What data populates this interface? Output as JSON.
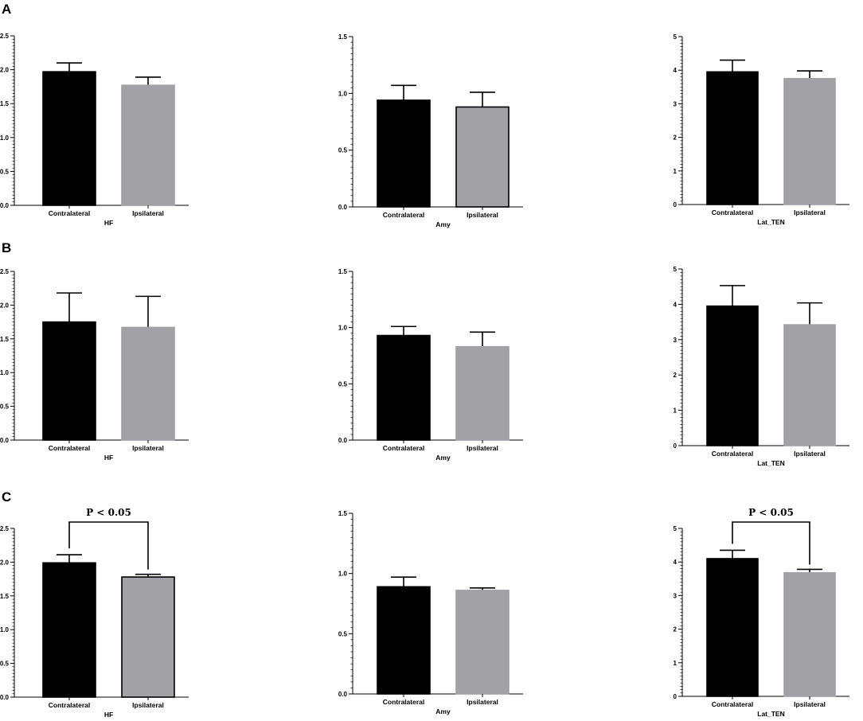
{
  "rows": [
    {
      "letter": "A"
    },
    {
      "letter": "B"
    },
    {
      "letter": "C"
    }
  ],
  "chart_data": [
    {
      "type": "bar",
      "row": 0,
      "col": 0,
      "categories": [
        "Contralateral",
        "Ipsilateral"
      ],
      "values": [
        1.97,
        1.77
      ],
      "errors": [
        0.13,
        0.12
      ],
      "xlabel": "HF",
      "ylabel": "",
      "ylim": [
        0,
        2.5
      ],
      "yticks": [
        "0.0",
        "0.5",
        "1.0",
        "1.5",
        "2.0",
        "2.5"
      ],
      "colors": [
        "#000000",
        "#a2a1a6"
      ],
      "bar_outline": [
        "#000000",
        "#a2a1a6"
      ],
      "significance": ""
    },
    {
      "type": "bar",
      "row": 0,
      "col": 1,
      "categories": [
        "Contralateral",
        "Ipsilateral"
      ],
      "values": [
        0.94,
        0.88
      ],
      "errors": [
        0.13,
        0.13
      ],
      "xlabel": "Amy",
      "ylabel": "",
      "ylim": [
        0,
        1.5
      ],
      "yticks": [
        "0.0",
        "0.5",
        "1.0",
        "1.5"
      ],
      "colors": [
        "#000000",
        "#a2a1a6"
      ],
      "bar_outline": [
        "#000000",
        "#000000"
      ],
      "significance": ""
    },
    {
      "type": "bar",
      "row": 0,
      "col": 2,
      "categories": [
        "Contralateral",
        "Ipsilateral"
      ],
      "values": [
        3.95,
        3.75
      ],
      "errors": [
        0.35,
        0.23
      ],
      "xlabel": "Lat_TEN",
      "ylabel": "",
      "ylim": [
        0,
        5
      ],
      "yticks": [
        "0",
        "1",
        "2",
        "3",
        "4",
        "5"
      ],
      "colors": [
        "#000000",
        "#a2a1a6"
      ],
      "bar_outline": [
        "#000000",
        "#a2a1a6"
      ],
      "significance": ""
    },
    {
      "type": "bar",
      "row": 1,
      "col": 0,
      "categories": [
        "Contralateral",
        "Ipsilateral"
      ],
      "values": [
        1.75,
        1.67
      ],
      "errors": [
        0.43,
        0.46
      ],
      "xlabel": "HF",
      "ylabel": "",
      "ylim": [
        0,
        2.5
      ],
      "yticks": [
        "0.0",
        "0.5",
        "1.0",
        "1.5",
        "2.0",
        "2.5"
      ],
      "colors": [
        "#000000",
        "#a2a1a6"
      ],
      "bar_outline": [
        "#000000",
        "#a2a1a6"
      ],
      "significance": ""
    },
    {
      "type": "bar",
      "row": 1,
      "col": 1,
      "categories": [
        "Contralateral",
        "Ipsilateral"
      ],
      "values": [
        0.93,
        0.83
      ],
      "errors": [
        0.08,
        0.13
      ],
      "xlabel": "Amy",
      "ylabel": "",
      "ylim": [
        0,
        1.5
      ],
      "yticks": [
        "0.0",
        "0.5",
        "1.0",
        "1.5"
      ],
      "colors": [
        "#000000",
        "#a2a1a6"
      ],
      "bar_outline": [
        "#000000",
        "#a2a1a6"
      ],
      "significance": ""
    },
    {
      "type": "bar",
      "row": 1,
      "col": 2,
      "categories": [
        "Contralateral",
        "Ipsilateral"
      ],
      "values": [
        3.95,
        3.42
      ],
      "errors": [
        0.58,
        0.62
      ],
      "xlabel": "Lat_TEN",
      "ylabel": "",
      "ylim": [
        0,
        5
      ],
      "yticks": [
        "0",
        "1",
        "2",
        "3",
        "4",
        "5"
      ],
      "colors": [
        "#000000",
        "#a2a1a6"
      ],
      "bar_outline": [
        "#000000",
        "#a2a1a6"
      ],
      "significance": ""
    },
    {
      "type": "bar",
      "row": 2,
      "col": 0,
      "categories": [
        "Contralateral",
        "Ipsilateral"
      ],
      "values": [
        1.99,
        1.78
      ],
      "errors": [
        0.12,
        0.04
      ],
      "xlabel": "HF",
      "ylabel": "",
      "ylim": [
        0,
        2.5
      ],
      "yticks": [
        "0.0",
        "0.5",
        "1.0",
        "1.5",
        "2.0",
        "2.5"
      ],
      "colors": [
        "#000000",
        "#a2a1a6"
      ],
      "bar_outline": [
        "#000000",
        "#000000"
      ],
      "significance": "P < 0.05"
    },
    {
      "type": "bar",
      "row": 2,
      "col": 1,
      "categories": [
        "Contralateral",
        "Ipsilateral"
      ],
      "values": [
        0.89,
        0.86
      ],
      "errors": [
        0.08,
        0.02
      ],
      "xlabel": "Amy",
      "ylabel": "",
      "ylim": [
        0,
        1.5
      ],
      "yticks": [
        "0.0",
        "0.5",
        "1.0",
        "1.5"
      ],
      "colors": [
        "#000000",
        "#a2a1a6"
      ],
      "bar_outline": [
        "#000000",
        "#a2a1a6"
      ],
      "significance": ""
    },
    {
      "type": "bar",
      "row": 2,
      "col": 2,
      "categories": [
        "Contralateral",
        "Ipsilateral"
      ],
      "values": [
        4.1,
        3.68
      ],
      "errors": [
        0.25,
        0.1
      ],
      "xlabel": "Lat_TEN",
      "ylabel": "",
      "ylim": [
        0,
        5
      ],
      "yticks": [
        "0",
        "1",
        "2",
        "3",
        "4",
        "5"
      ],
      "colors": [
        "#000000",
        "#a2a1a6"
      ],
      "bar_outline": [
        "#000000",
        "#a2a1a6"
      ],
      "significance": "P < 0.05"
    }
  ]
}
